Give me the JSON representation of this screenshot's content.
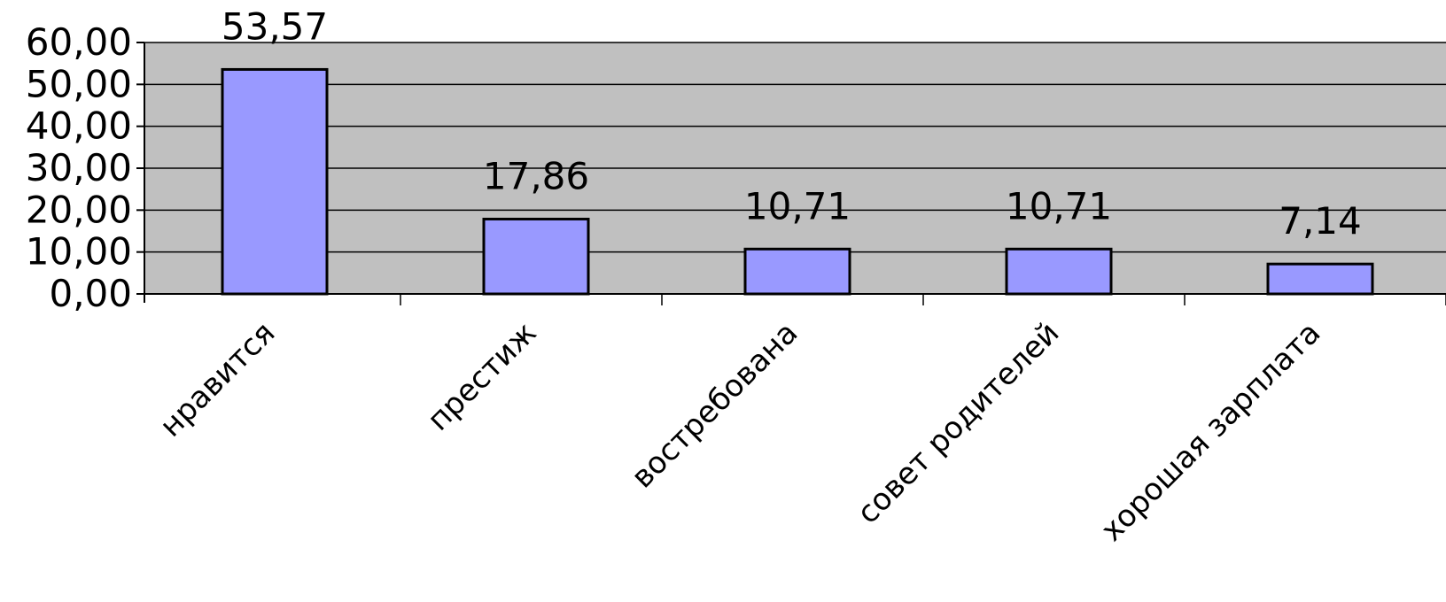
{
  "chart_data": {
    "type": "bar",
    "categories": [
      "нравится",
      "престиж",
      "востребована",
      "совет родителей",
      "хорошая зарплата"
    ],
    "values": [
      53.57,
      17.86,
      10.71,
      10.71,
      7.14
    ],
    "value_labels": [
      "53,57",
      "17,86",
      "10,71",
      "10,71",
      "7,14"
    ],
    "y_ticks": [
      "0,00",
      "10,00",
      "20,00",
      "30,00",
      "40,00",
      "50,00",
      "60,00"
    ],
    "ylim": [
      0,
      60
    ],
    "ytick_step": 10,
    "grid": true,
    "legend": "none",
    "title": "",
    "xlabel": "",
    "ylabel": "",
    "colors": {
      "bar_fill": "#9999ff",
      "bar_stroke": "#000000",
      "plot_background": "#c0c0c0",
      "gridline": "#000000",
      "axis": "#000000"
    }
  }
}
